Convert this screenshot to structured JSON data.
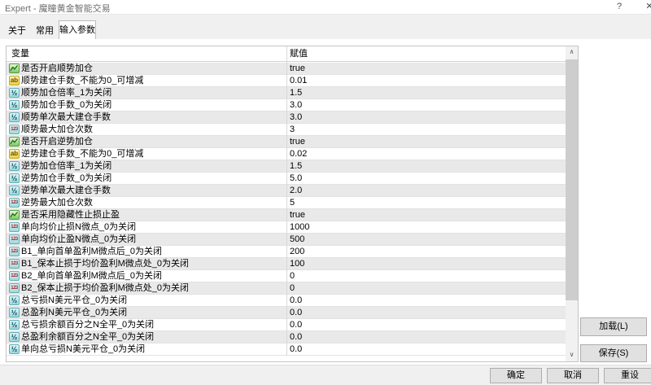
{
  "window": {
    "title": "Expert - 魔瞳黄金智能交易",
    "help_glyph": "?",
    "close_glyph": "✕"
  },
  "tabs": {
    "about": "关于",
    "common": "常用",
    "inputs": "输入参数",
    "active": "输入参数"
  },
  "table": {
    "columns": {
      "variable": "变量",
      "value": "赋值"
    },
    "icon_glyphs": {
      "string": "ab",
      "double": "½",
      "int": "123",
      "bool": "zigzag-line"
    },
    "rows": [
      {
        "name": "是否开启顺势加仓",
        "value": "true",
        "type": "bool"
      },
      {
        "name": "顺势建仓手数_不能为0_可增减",
        "value": "0.01",
        "type": "string"
      },
      {
        "name": "顺势加仓倍率_1为关闭",
        "value": "1.5",
        "type": "double"
      },
      {
        "name": "顺势加仓手数_0为关闭",
        "value": "3.0",
        "type": "double"
      },
      {
        "name": "顺势单次最大建仓手数",
        "value": "3.0",
        "type": "double"
      },
      {
        "name": "顺势最大加仓次数",
        "value": "3",
        "type": "int"
      },
      {
        "name": "是否开启逆势加仓",
        "value": "true",
        "type": "bool"
      },
      {
        "name": "逆势建仓手数_不能为0_可增减",
        "value": "0.02",
        "type": "string"
      },
      {
        "name": "逆势加仓倍率_1为关闭",
        "value": "1.5",
        "type": "double"
      },
      {
        "name": "逆势加仓手数_0为关闭",
        "value": "5.0",
        "type": "double"
      },
      {
        "name": "逆势单次最大建仓手数",
        "value": "2.0",
        "type": "double"
      },
      {
        "name": "逆势最大加仓次数",
        "value": "5",
        "type": "int"
      },
      {
        "name": "是否采用隐藏性止损止盈",
        "value": "true",
        "type": "bool"
      },
      {
        "name": "单向均价止损N微点_0为关闭",
        "value": "1000",
        "type": "int"
      },
      {
        "name": "单向均价止盈N微点_0为关闭",
        "value": "500",
        "type": "int"
      },
      {
        "name": "B1_单向首单盈利M微点后_0为关闭",
        "value": "200",
        "type": "int"
      },
      {
        "name": "B1_保本止损于均价盈利M微点处_0为关闭",
        "value": "100",
        "type": "int"
      },
      {
        "name": "B2_单向首单盈利M微点后_0为关闭",
        "value": "0",
        "type": "int"
      },
      {
        "name": "B2_保本止损于均价盈利M微点处_0为关闭",
        "value": "0",
        "type": "int"
      },
      {
        "name": "总亏损N美元平仓_0为关闭",
        "value": "0.0",
        "type": "double"
      },
      {
        "name": "总盈利N美元平仓_0为关闭",
        "value": "0.0",
        "type": "double"
      },
      {
        "name": "总亏损余额百分之N全平_0为关闭",
        "value": "0.0",
        "type": "double"
      },
      {
        "name": "总盈利余额百分之N全平_0为关闭",
        "value": "0.0",
        "type": "double"
      },
      {
        "name": "单向总亏损N美元平仓_0为关闭",
        "value": "0.0",
        "type": "double"
      }
    ]
  },
  "scrollbar": {
    "up_glyph": "∧",
    "down_glyph": "∨"
  },
  "buttons": {
    "load": "加载(L)",
    "save": "保存(S)",
    "ok": "确定",
    "cancel": "取消",
    "reset": "重设"
  },
  "colors": {
    "row_alt": "#e9e9e9",
    "bool_icon_green": "#7cc95e",
    "string_icon_yellow": "#eecf3a",
    "number_icon_cyan": "#9cdae1",
    "button_face": "#e1e1e1",
    "footer_bg": "#f0f0f0"
  }
}
